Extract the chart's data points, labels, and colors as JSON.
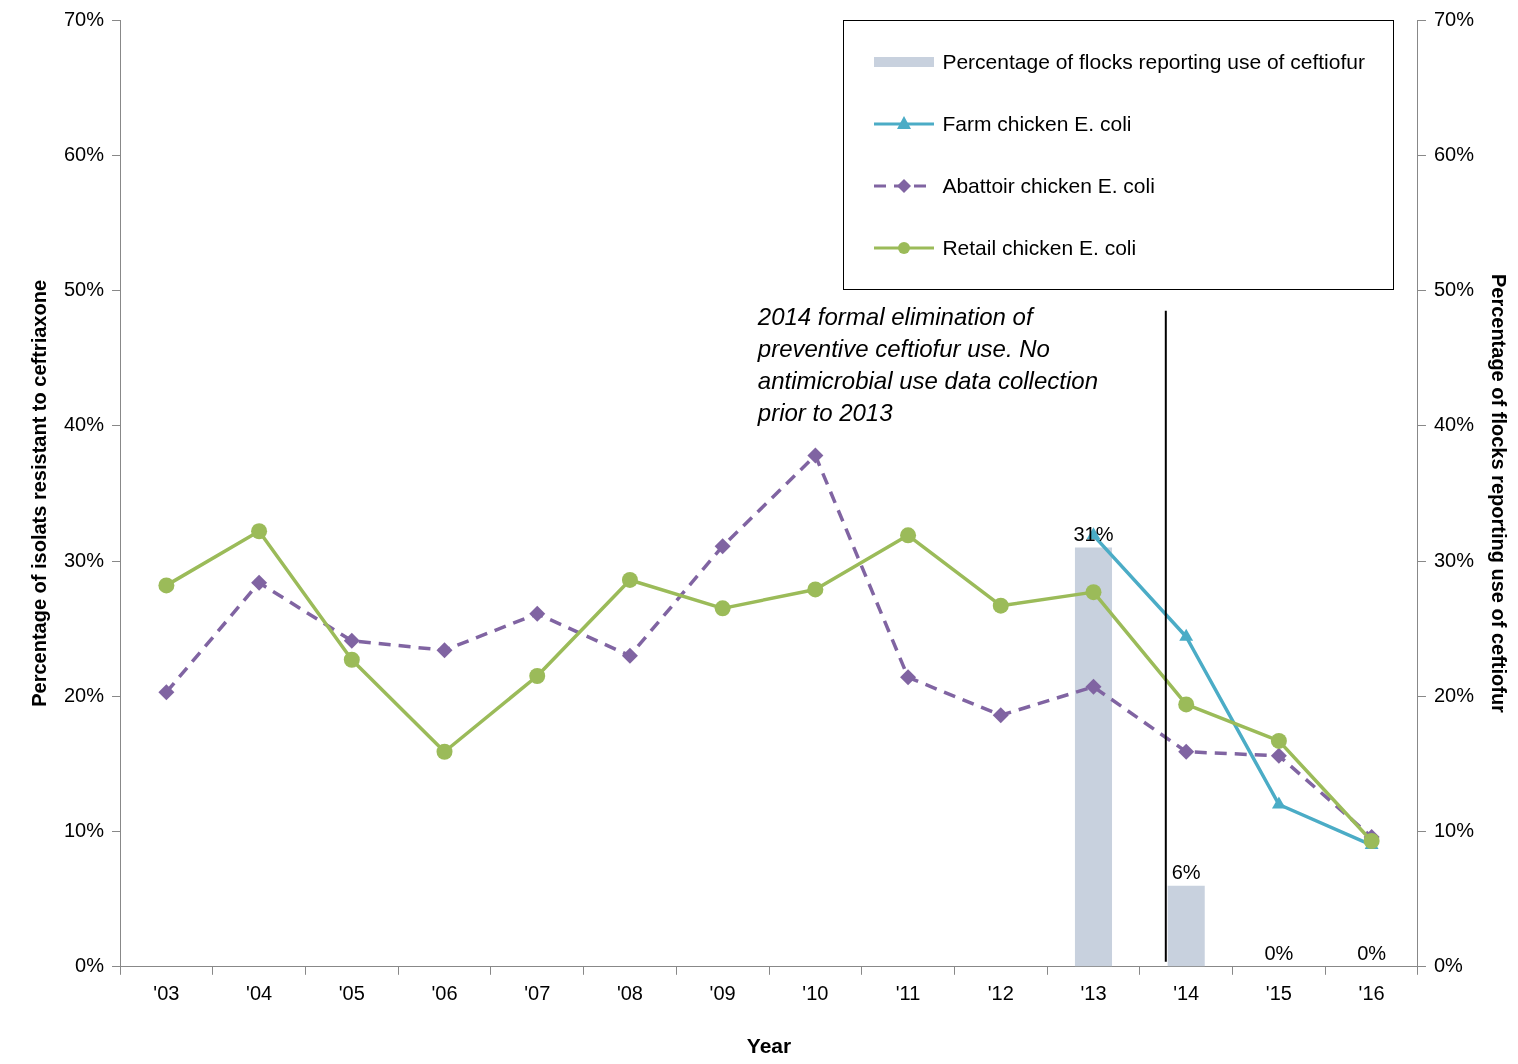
{
  "chart_data": {
    "type": "line",
    "xlabel": "Year",
    "ylabel": "Percentage of isolats resistant to ceftriaxone",
    "y2label": "Percentage of flocks reporting use of ceftiofur",
    "categories": [
      "'03",
      "'04",
      "'05",
      "'06",
      "'07",
      "'08",
      "'09",
      "'10",
      "'11",
      "'12",
      "'13",
      "'14",
      "'15",
      "'16"
    ],
    "ylim": [
      0,
      70
    ],
    "yticks": [
      {
        "value": 0,
        "label": "0%"
      },
      {
        "value": 10,
        "label": "10%"
      },
      {
        "value": 20,
        "label": "20%"
      },
      {
        "value": 30,
        "label": "30%"
      },
      {
        "value": 40,
        "label": "40%"
      },
      {
        "value": 50,
        "label": "50%"
      },
      {
        "value": 60,
        "label": "60%"
      },
      {
        "value": 70,
        "label": "70%"
      }
    ],
    "y2lim": [
      0,
      70
    ],
    "y2ticks": [
      {
        "value": 0,
        "label": "0%"
      },
      {
        "value": 10,
        "label": "10%"
      },
      {
        "value": 20,
        "label": "20%"
      },
      {
        "value": 30,
        "label": "30%"
      },
      {
        "value": 40,
        "label": "40%"
      },
      {
        "value": 50,
        "label": "50%"
      },
      {
        "value": 60,
        "label": "60%"
      },
      {
        "value": 70,
        "label": "70%"
      }
    ],
    "grid": false,
    "legend": "top right",
    "annotations": [
      "2014 formal elimination of preventive ceftiofur use. No antimicrobial use data collection prior to 2013"
    ],
    "ref_lines": [
      {
        "axis": "x",
        "value": "'14",
        "color": "#000000"
      }
    ],
    "series": [
      {
        "name": "Percentage of flocks reporting use of ceftiofur",
        "type": "bar",
        "axis": "y2",
        "color": "#c8d1de",
        "values": [
          null,
          null,
          null,
          null,
          null,
          null,
          null,
          null,
          null,
          null,
          31,
          6,
          0,
          0
        ],
        "value_labels": [
          null,
          null,
          null,
          null,
          null,
          null,
          null,
          null,
          null,
          null,
          "31%",
          "6%",
          "0%",
          "0%"
        ]
      },
      {
        "name": "Farm chicken E. coli",
        "color": "#4bacc6",
        "marker": "triangle",
        "line_style": "solid",
        "values": [
          null,
          null,
          null,
          null,
          null,
          null,
          null,
          null,
          null,
          null,
          31.9,
          24.4,
          12.0,
          9.0
        ]
      },
      {
        "name": "Abattoir chicken E. coli",
        "color": "#8064a2",
        "marker": "diamond",
        "line_style": "dashed",
        "values": [
          20.3,
          28.4,
          24.1,
          23.4,
          26.1,
          23.0,
          31.1,
          37.8,
          21.4,
          18.6,
          20.7,
          15.9,
          15.6,
          9.6
        ]
      },
      {
        "name": "Retail chicken E. coli",
        "color": "#9bbb59",
        "marker": "circle",
        "line_style": "solid",
        "values": [
          28.2,
          32.2,
          22.7,
          15.9,
          21.5,
          28.6,
          26.5,
          27.9,
          31.9,
          26.7,
          27.7,
          19.4,
          16.7,
          9.3
        ]
      }
    ]
  }
}
